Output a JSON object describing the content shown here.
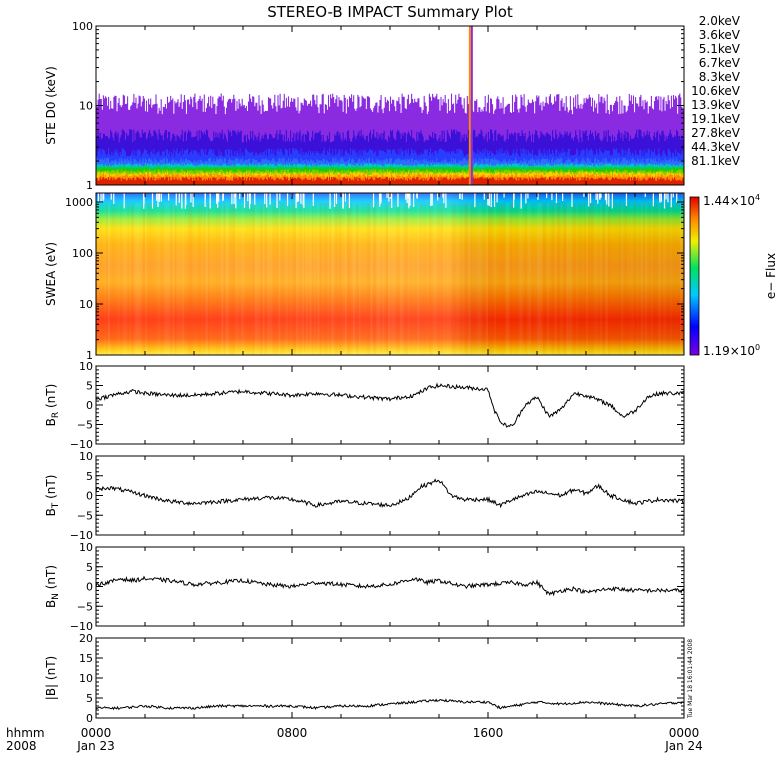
{
  "title": "STEREO-B IMPACT Summary Plot",
  "stamp": "Tue Mar 18 16:01:44 2008",
  "x_axis": {
    "row1_label": "hhmm",
    "row2_label": "2008",
    "ticks": [
      {
        "hour": 0,
        "label": "0000",
        "date": "Jan 23"
      },
      {
        "hour": 8,
        "label": "0800",
        "date": ""
      },
      {
        "hour": 16,
        "label": "1600",
        "date": ""
      },
      {
        "hour": 24,
        "label": "0000",
        "date": "Jan 24"
      }
    ],
    "range_hours": [
      0,
      24
    ]
  },
  "chart_data": [
    {
      "type": "line",
      "id": "ste",
      "ylabel": "STE D0 (keV)",
      "ylog": true,
      "ylim": [
        1,
        100
      ],
      "yticks": [
        {
          "v": 1,
          "t": "1"
        },
        {
          "v": 10,
          "t": "10"
        },
        {
          "v": 100,
          "t": "100"
        }
      ],
      "spike_hour": 15.3,
      "series": [
        {
          "name": "2.0keV",
          "color": "#8a2be2",
          "level": 10,
          "spread": 4
        },
        {
          "name": "3.6keV",
          "color": "#3b10d8",
          "level": 4.0,
          "spread": 1.0
        },
        {
          "name": "5.1keV",
          "color": "#2a3cff",
          "level": 2.5,
          "spread": 0.4
        },
        {
          "name": "6.7keV",
          "color": "#2f6bff",
          "level": 2.0,
          "spread": 0.2
        },
        {
          "name": "8.3keV",
          "color": "#00c8c8",
          "level": 1.8,
          "spread": 0.1
        },
        {
          "name": "10.6keV",
          "color": "#00cc66",
          "level": 1.7,
          "spread": 0.1
        },
        {
          "name": "13.9keV",
          "color": "#22cc00",
          "level": 1.6,
          "spread": 0.1
        },
        {
          "name": "19.1keV",
          "color": "#88cc00",
          "level": 1.5,
          "spread": 0.1
        },
        {
          "name": "27.8keV",
          "color": "#ffcc00",
          "level": 1.4,
          "spread": 0.1
        },
        {
          "name": "44.3keV",
          "color": "#ff8800",
          "level": 1.3,
          "spread": 0.1
        },
        {
          "name": "81.1keV",
          "color": "#dd2200",
          "level": 1.2,
          "spread": 0.1
        }
      ]
    },
    {
      "type": "heatmap",
      "id": "swea",
      "ylabel": "SWEA (eV)",
      "ylog": true,
      "ylim": [
        1,
        1500
      ],
      "yticks": [
        {
          "v": 1,
          "t": "1"
        },
        {
          "v": 10,
          "t": "10"
        },
        {
          "v": 100,
          "t": "100"
        },
        {
          "v": 1000,
          "t": "1000"
        }
      ],
      "colorbar": {
        "label": "e− Flux",
        "max_base": "1.44×10",
        "max_exp": "4",
        "min_base": "1.19×10",
        "min_exp": "0"
      }
    },
    {
      "type": "line",
      "id": "br",
      "ylabel_main": "B",
      "ylabel_sub": "R",
      "ylabel_unit": " (nT)",
      "ylim": [
        -10,
        10
      ],
      "yticks": [
        {
          "v": 10,
          "t": "10"
        },
        {
          "v": 5,
          "t": "5"
        },
        {
          "v": 0,
          "t": "0"
        },
        {
          "v": -5,
          "t": "−5"
        },
        {
          "v": -10,
          "t": "−10"
        }
      ],
      "x": [
        0,
        1,
        1.5,
        2,
        3,
        4,
        5,
        6,
        7,
        8,
        9,
        10,
        11,
        12,
        13,
        13.6,
        14,
        15,
        16,
        16.3,
        16.6,
        17,
        17.5,
        18,
        18.5,
        19,
        19.5,
        20,
        21,
        21.5,
        22,
        22.5,
        23,
        24
      ],
      "values": [
        1.5,
        3,
        3.5,
        3,
        2.5,
        2.5,
        3,
        3.5,
        3,
        2.5,
        3,
        2.5,
        2,
        1.5,
        2.5,
        4.5,
        5,
        4.5,
        4,
        -2,
        -5,
        -5.5,
        0,
        2,
        -3,
        -1,
        3,
        2.5,
        0,
        -3,
        -1.5,
        2,
        3,
        3
      ]
    },
    {
      "type": "line",
      "id": "bt",
      "ylabel_main": "B",
      "ylabel_sub": "T",
      "ylabel_unit": " (nT)",
      "ylim": [
        -10,
        10
      ],
      "yticks": [
        {
          "v": 10,
          "t": "10"
        },
        {
          "v": 5,
          "t": "5"
        },
        {
          "v": 0,
          "t": "0"
        },
        {
          "v": -5,
          "t": "−5"
        },
        {
          "v": -10,
          "t": "−10"
        }
      ],
      "x": [
        0,
        0.5,
        1,
        2,
        3,
        4,
        5,
        6,
        7,
        8,
        9,
        10,
        11,
        12,
        12.7,
        13.2,
        13.6,
        14,
        14.5,
        15,
        16,
        16.5,
        17,
        18,
        19,
        19.5,
        20,
        20.5,
        21,
        22,
        23,
        24
      ],
      "values": [
        1.5,
        2,
        1.5,
        0,
        -1.5,
        -2,
        -1.5,
        -1,
        -0.5,
        -1,
        -2.5,
        -1.5,
        -2,
        -2.5,
        -1,
        2,
        3,
        4,
        0,
        -1,
        -1,
        -2.5,
        -1,
        1,
        0,
        1.5,
        0.5,
        2.5,
        0,
        -2,
        -1,
        -1.5
      ]
    },
    {
      "type": "line",
      "id": "bn",
      "ylabel_main": "B",
      "ylabel_sub": "N",
      "ylabel_unit": " (nT)",
      "ylim": [
        -10,
        10
      ],
      "yticks": [
        {
          "v": 10,
          "t": "10"
        },
        {
          "v": 5,
          "t": "5"
        },
        {
          "v": 0,
          "t": "0"
        },
        {
          "v": -5,
          "t": "−5"
        },
        {
          "v": -10,
          "t": "−10"
        }
      ],
      "x": [
        0,
        0.5,
        1,
        1.5,
        2,
        3,
        4,
        5,
        6,
        7,
        8,
        9,
        10,
        11,
        12,
        13,
        13.5,
        14,
        15,
        16,
        17,
        17.5,
        18,
        18.5,
        19,
        19.5,
        20,
        21,
        22,
        23,
        24
      ],
      "values": [
        0.5,
        1,
        2,
        1.5,
        2,
        1.5,
        0.5,
        1,
        1.5,
        0.5,
        0,
        1,
        0.5,
        0,
        0.5,
        2,
        1,
        1.5,
        0,
        0.5,
        1,
        0.5,
        1,
        -2,
        -1,
        -0.5,
        -1.5,
        -0.5,
        -1,
        -1,
        -1
      ]
    },
    {
      "type": "line",
      "id": "bmag",
      "ylabel": "|B| (nT)",
      "ylim": [
        0,
        20
      ],
      "yticks": [
        {
          "v": 20,
          "t": "20"
        },
        {
          "v": 15,
          "t": "15"
        },
        {
          "v": 10,
          "t": "10"
        },
        {
          "v": 5,
          "t": "5"
        },
        {
          "v": 0,
          "t": "0"
        }
      ],
      "x": [
        0,
        1,
        2,
        3,
        4,
        5,
        6,
        7,
        8,
        9,
        10,
        11,
        12,
        13,
        14,
        15,
        16,
        16.5,
        17,
        17.5,
        18,
        19,
        20,
        21,
        22,
        23,
        24
      ],
      "values": [
        2.5,
        2.5,
        3,
        2.5,
        2.5,
        3,
        3,
        3,
        3,
        2.5,
        3,
        3,
        3.5,
        4,
        4.5,
        4,
        4,
        2.5,
        3,
        3.5,
        4,
        3.5,
        4,
        3.5,
        3,
        3.5,
        4
      ]
    }
  ]
}
